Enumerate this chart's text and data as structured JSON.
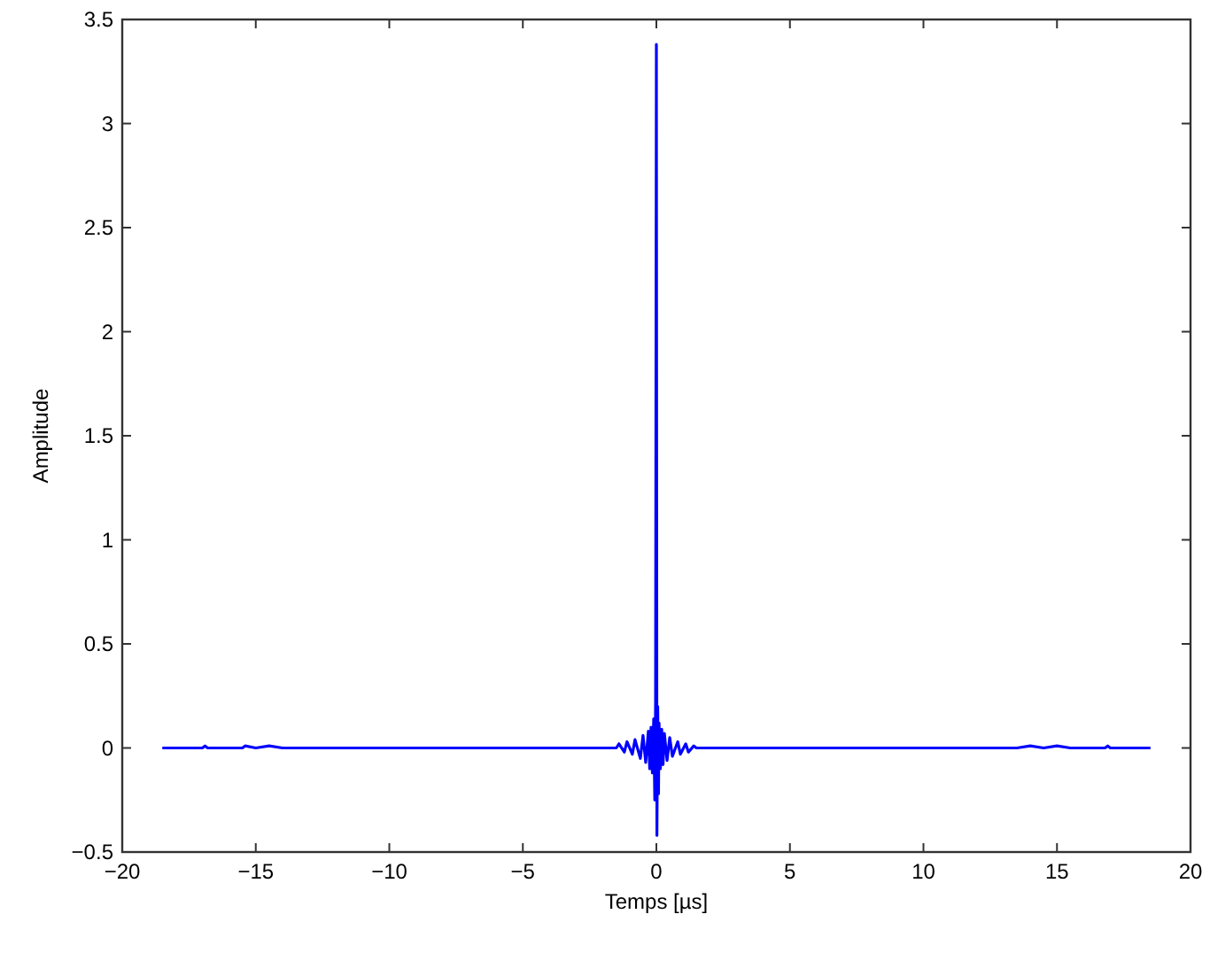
{
  "chart_data": {
    "type": "line",
    "xlabel": "Temps [µs]",
    "ylabel": "Amplitude",
    "xlim": [
      -20,
      20
    ],
    "ylim": [
      -0.5,
      3.5
    ],
    "xticks": [
      -20,
      -15,
      -10,
      -5,
      0,
      5,
      10,
      15,
      20
    ],
    "yticks": [
      -0.5,
      0,
      0.5,
      1,
      1.5,
      2,
      2.5,
      3,
      3.5
    ],
    "series": [
      {
        "color": "#0000ff",
        "x": [
          -18.5,
          -17,
          -16.9,
          -16.8,
          -15.5,
          -15.4,
          -15,
          -14.5,
          -14,
          -13.5,
          -10,
          -5,
          -1.5,
          -1.4,
          -1.2,
          -1.1,
          -0.9,
          -0.8,
          -0.6,
          -0.5,
          -0.4,
          -0.3,
          -0.25,
          -0.2,
          -0.15,
          -0.1,
          -0.06,
          -0.03,
          0,
          0.02,
          0.05,
          0.08,
          0.1,
          0.15,
          0.2,
          0.25,
          0.3,
          0.4,
          0.5,
          0.6,
          0.8,
          0.9,
          1.1,
          1.2,
          1.4,
          1.5,
          5,
          10,
          13.5,
          14,
          14.5,
          15,
          15.5,
          16.8,
          16.9,
          17,
          18.5
        ],
        "values": [
          0,
          0,
          0.01,
          0,
          0,
          0.01,
          0,
          0.01,
          0,
          0,
          0,
          0,
          0,
          0.02,
          -0.02,
          0.03,
          -0.03,
          0.04,
          -0.05,
          0.06,
          -0.07,
          0.08,
          -0.1,
          0.1,
          -0.12,
          0.14,
          -0.25,
          0.22,
          3.38,
          -0.42,
          0.2,
          -0.22,
          0.12,
          -0.1,
          0.09,
          -0.08,
          0.07,
          -0.06,
          0.05,
          -0.04,
          0.03,
          -0.03,
          0.02,
          -0.02,
          0.01,
          0,
          0,
          0,
          0,
          0.01,
          0,
          0.01,
          0,
          0,
          0.01,
          0,
          0
        ]
      }
    ]
  }
}
